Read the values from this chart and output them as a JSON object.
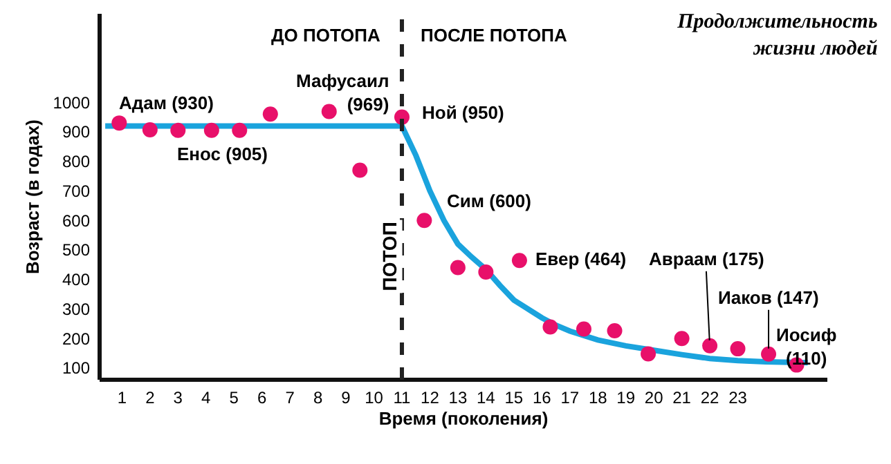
{
  "chart_data": {
    "type": "scatter",
    "title": "Продолжительность\nжизни людей",
    "xlabel": "Время (поколения)",
    "ylabel": "Возраст (в годах)",
    "xlim": [
      0.2,
      26.2
    ],
    "xticks": [
      1,
      2,
      3,
      4,
      5,
      6,
      7,
      8,
      9,
      10,
      11,
      12,
      13,
      14,
      15,
      16,
      17,
      18,
      19,
      20,
      21,
      22,
      23
    ],
    "ylim": [
      60,
      1300
    ],
    "yticks": [
      100,
      200,
      300,
      400,
      500,
      600,
      700,
      800,
      900,
      1000
    ],
    "grid": false,
    "marker": "circle",
    "series": [
      {
        "type": "line",
        "color": "#1aa3dd",
        "line_style": "solid",
        "marker": "none",
        "x": [
          0.4,
          11,
          11.25,
          11.5,
          11.75,
          12,
          12.5,
          13,
          13.5,
          14,
          14.5,
          15,
          15.5,
          16,
          16.5,
          17,
          18,
          19,
          20,
          21,
          22,
          23,
          24,
          25.5
        ],
        "values": [
          920,
          920,
          870,
          820,
          760,
          700,
          600,
          520,
          475,
          434,
          380,
          330,
          300,
          270,
          245,
          225,
          195,
          175,
          160,
          145,
          132,
          125,
          121,
          118
        ]
      },
      {
        "type": "scatter",
        "color": "#e8106a",
        "x": [
          0.9,
          2,
          3,
          4.2,
          5.2,
          6.3,
          8.4,
          9.5,
          11,
          11.8,
          13,
          14,
          15.2,
          16.3,
          17.5,
          18.6,
          19.8,
          21,
          22,
          23,
          24.1,
          25.1
        ],
        "values": [
          930,
          907,
          905,
          905,
          905,
          960,
          969,
          770,
          950,
          600,
          440,
          425,
          464,
          239,
          232,
          226,
          148,
          200,
          175,
          165,
          147,
          110
        ]
      }
    ],
    "ref_lines": [
      {
        "axis": "x",
        "value": 11,
        "label": "ПОТОП",
        "line_style": "dashed",
        "color": "#222222"
      }
    ],
    "annotations": [
      "ДО ПОТОПА",
      "ПОСЛЕ ПОТОПА",
      {
        "text": "Адам (930)",
        "x": 0.9,
        "y": 930
      },
      {
        "text": "Енос (905)",
        "x": 5.2,
        "y": 905
      },
      {
        "text": "Мафусаил\n(969)",
        "x": 8.4,
        "y": 969
      },
      {
        "text": "Ной (950)",
        "x": 11,
        "y": 950
      },
      {
        "text": "Сим (600)",
        "x": 11.8,
        "y": 600
      },
      {
        "text": "Евер (464)",
        "x": 15.2,
        "y": 464
      },
      {
        "text": "Авраам (175)",
        "x": 22,
        "y": 175
      },
      {
        "text": "Иаков (147)",
        "x": 24.1,
        "y": 147
      },
      {
        "text": "Иосиф\n(110)",
        "x": 25.1,
        "y": 110
      }
    ]
  }
}
